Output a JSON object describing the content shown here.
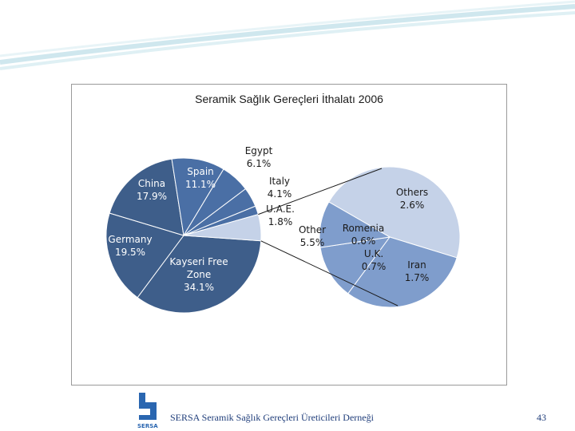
{
  "slide": {
    "footer": "SERSA Seramik Sağlık Gereçleri Üreticileri Derneği",
    "page_number": "43",
    "logo_text": "SERSA"
  },
  "colors": {
    "dark_blue": "#3e5e8a",
    "mid_blue": "#4a6fa5",
    "light_blue": "#7f9dcc",
    "pale_blue": "#c5d2e8",
    "frame": "#9a9a9a"
  },
  "chart_data": {
    "type": "pie",
    "title": "Seramik Sağlık Gereçleri İthalatı 2006",
    "slices": [
      {
        "name": "Kayseri Free Zone",
        "label": "Kayseri Free\nZone\n34.1%",
        "value": 34.1
      },
      {
        "name": "Germany",
        "label": "Germany\n19.5%",
        "value": 19.5
      },
      {
        "name": "China",
        "label": "China\n17.9%",
        "value": 17.9
      },
      {
        "name": "Spain",
        "label": "Spain\n11.1%",
        "value": 11.1
      },
      {
        "name": "Egypt",
        "label": "Egypt\n6.1%",
        "value": 6.1
      },
      {
        "name": "Italy",
        "label": "Italy\n4.1%",
        "value": 4.1
      },
      {
        "name": "U.A.E.",
        "label": "U.A.E.\n1.8%",
        "value": 1.8
      },
      {
        "name": "Other",
        "label": "Other\n5.5%",
        "value": 5.5
      }
    ],
    "breakout": {
      "of": "Other",
      "slices": [
        {
          "name": "Others",
          "label": "Others\n2.6%",
          "value": 2.6
        },
        {
          "name": "Iran",
          "label": "Iran\n1.7%",
          "value": 1.7
        },
        {
          "name": "U.K.",
          "label": "U.K.\n0.7%",
          "value": 0.7
        },
        {
          "name": "Romenia",
          "label": "Romenia\n0.6%",
          "value": 0.6
        }
      ]
    }
  }
}
